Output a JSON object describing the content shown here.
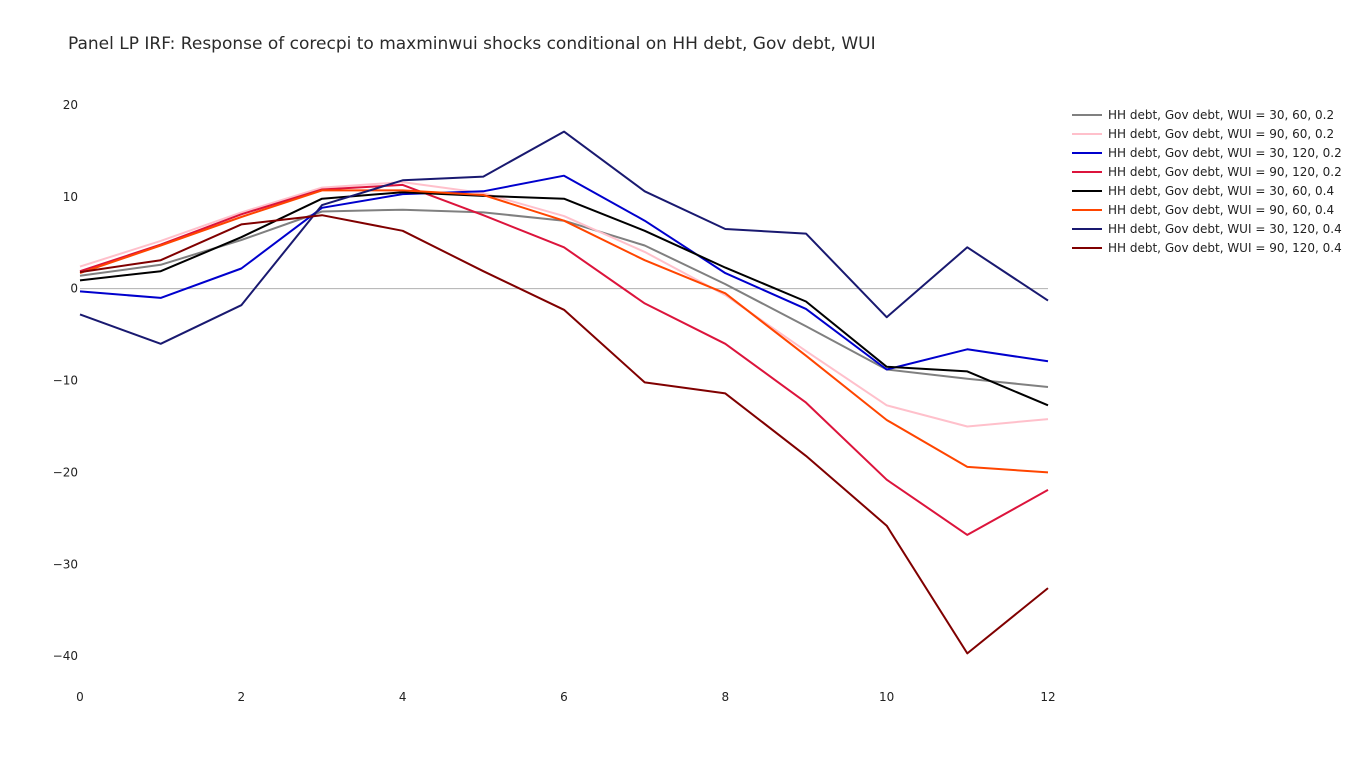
{
  "chart_data": {
    "type": "line",
    "title": "Panel LP IRF: Response of corecpi to maxminwui shocks conditional on HH debt, Gov debt, WUI",
    "xlabel": "",
    "ylabel": "",
    "x": [
      0,
      1,
      2,
      3,
      4,
      5,
      6,
      7,
      8,
      9,
      10,
      11,
      12
    ],
    "xlim": [
      0,
      12
    ],
    "ylim": [
      -42.6,
      22.5
    ],
    "xticks": [
      0,
      2,
      4,
      6,
      8,
      10,
      12
    ],
    "yticks": [
      20,
      10,
      0,
      -10,
      -20,
      -30,
      -40
    ],
    "ytick_labels": [
      "20",
      "10",
      "0",
      "−10",
      "−20",
      "−30",
      "−40"
    ],
    "zero_line": true,
    "grid": false,
    "legend_position": "top-right",
    "series": [
      {
        "name": "HH debt, Gov debt, WUI = 30, 60, 0.2",
        "color": "#808080",
        "values": [
          1.4,
          2.6,
          5.3,
          8.4,
          8.6,
          8.3,
          7.4,
          4.7,
          0.5,
          -4.1,
          -8.8,
          -9.8,
          -10.7
        ]
      },
      {
        "name": "HH debt, Gov debt, WUI = 90, 60, 0.2",
        "color": "#ffc0cb",
        "values": [
          2.4,
          5.2,
          8.3,
          11.0,
          11.6,
          10.4,
          7.9,
          4.0,
          -0.7,
          -6.8,
          -12.7,
          -15.0,
          -14.2
        ]
      },
      {
        "name": "HH debt, Gov debt, WUI = 30, 120, 0.2",
        "color": "#0000cd",
        "values": [
          -0.3,
          -1.0,
          2.2,
          8.8,
          10.3,
          10.6,
          12.3,
          7.4,
          1.7,
          -2.2,
          -8.8,
          -6.6,
          -7.9
        ]
      },
      {
        "name": "HH debt, Gov debt, WUI = 90, 120, 0.2",
        "color": "#dc143c",
        "values": [
          1.9,
          4.8,
          8.1,
          10.8,
          11.3,
          8.0,
          4.5,
          -1.6,
          -6.0,
          -12.4,
          -20.8,
          -26.8,
          -21.9
        ]
      },
      {
        "name": "HH debt, Gov debt, WUI = 30, 60, 0.4",
        "color": "#000000",
        "values": [
          0.9,
          1.9,
          5.6,
          9.8,
          10.5,
          10.1,
          9.8,
          6.3,
          2.3,
          -1.4,
          -8.5,
          -9.0,
          -12.7
        ]
      },
      {
        "name": "HH debt, Gov debt, WUI = 90, 60, 0.4",
        "color": "#ff4500",
        "values": [
          1.7,
          4.7,
          7.8,
          10.7,
          10.7,
          10.2,
          7.4,
          3.1,
          -0.5,
          -7.3,
          -14.3,
          -19.4,
          -20.0
        ]
      },
      {
        "name": "HH debt, Gov debt, WUI = 30, 120, 0.4",
        "color": "#191970",
        "values": [
          -2.8,
          -6.0,
          -1.8,
          9.1,
          11.8,
          12.2,
          17.1,
          10.6,
          6.5,
          6.0,
          -3.1,
          4.5,
          -1.3
        ]
      },
      {
        "name": "HH debt, Gov debt, WUI = 90, 120, 0.4",
        "color": "#800000",
        "values": [
          1.8,
          3.1,
          7.0,
          8.0,
          6.3,
          1.9,
          -2.3,
          -10.2,
          -11.4,
          -18.2,
          -25.8,
          -39.7,
          -32.6
        ]
      }
    ]
  }
}
